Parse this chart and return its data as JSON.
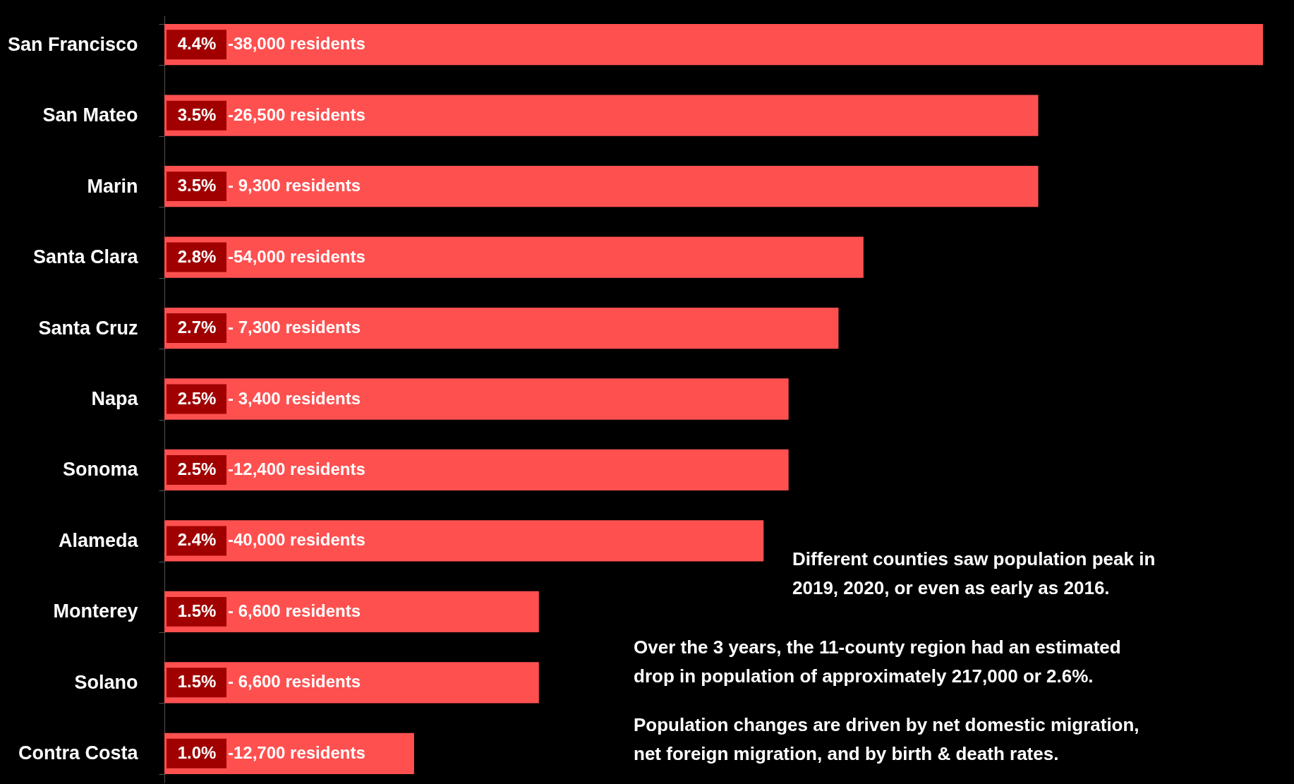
{
  "chart_data": {
    "type": "bar",
    "orientation": "horizontal",
    "categories": [
      "San Francisco",
      "San Mateo",
      "Marin",
      "Santa Clara",
      "Santa Cruz",
      "Napa",
      "Sonoma",
      "Alameda",
      "Monterey",
      "Solano",
      "Contra Costa"
    ],
    "values": [
      4.4,
      3.5,
      3.5,
      2.8,
      2.7,
      2.5,
      2.5,
      2.4,
      1.5,
      1.5,
      1.0
    ],
    "value_labels": [
      "4.4%",
      "3.5%",
      "3.5%",
      "2.8%",
      "2.7%",
      "2.5%",
      "2.5%",
      "2.4%",
      "1.5%",
      "1.5%",
      "1.0%"
    ],
    "color": "#ff5050",
    "annotations": [
      "-38,000 residents",
      "-26,500 residents",
      "- 9,300 residents",
      "-54,000 residents",
      "- 7,300 residents",
      "- 3,400 residents",
      "-12,400 residents",
      "-40,000 residents",
      "- 6,600 residents",
      "- 6,600 residents",
      "-12,700 residents",
      "Different counties saw population peak in\n2019, 2020, or even as early as 2016.",
      "Over the 3 years, the 11-county region had an estimated\ndrop in population of approximately 217,000 or 2.6%.",
      "Population changes are driven by net domestic migration,\nnet foreign migration, and by birth & death rates."
    ]
  }
}
